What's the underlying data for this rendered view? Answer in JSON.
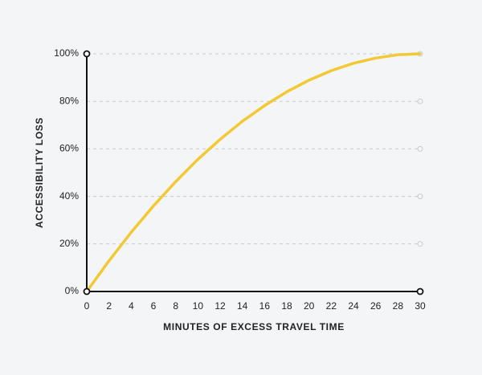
{
  "chart_data": {
    "type": "line",
    "x_label": "MINUTES OF EXCESS TRAVEL TIME",
    "y_label": "ACCESSIBILITY LOSS",
    "x": [
      0,
      2,
      4,
      6,
      8,
      10,
      12,
      14,
      16,
      18,
      20,
      22,
      24,
      26,
      28,
      30
    ],
    "values": [
      0,
      12.9,
      24.9,
      36,
      46.2,
      55.6,
      64,
      71.6,
      78.2,
      84,
      88.9,
      92.9,
      96,
      98.2,
      99.6,
      100
    ],
    "color": "#f2c833",
    "xlim": [
      0,
      30
    ],
    "xticks": [
      0,
      2,
      4,
      6,
      8,
      10,
      12,
      14,
      16,
      18,
      20,
      22,
      24,
      26,
      28,
      30
    ],
    "ylim": [
      0,
      100
    ],
    "yticks": [
      {
        "value": 0,
        "label": "0%"
      },
      {
        "value": 20,
        "label": "20%"
      },
      {
        "value": 40,
        "label": "40%"
      },
      {
        "value": 60,
        "label": "60%"
      },
      {
        "value": 80,
        "label": "80%"
      },
      {
        "value": 100,
        "label": "100%"
      }
    ],
    "grid": true
  }
}
